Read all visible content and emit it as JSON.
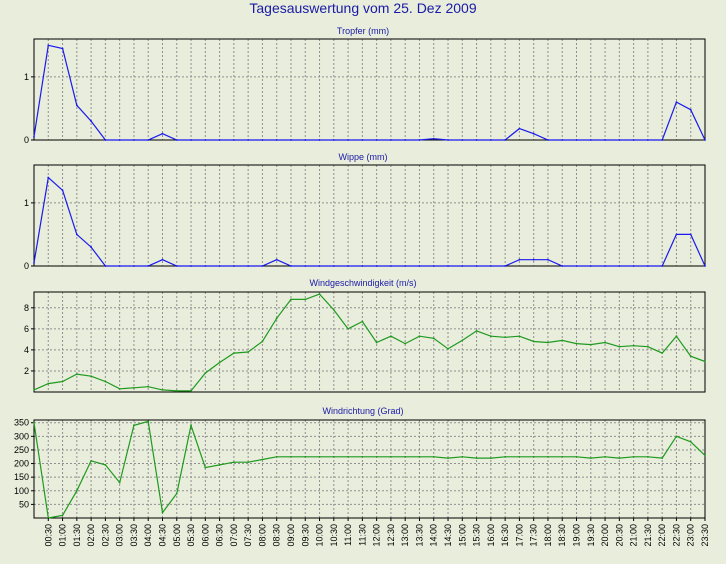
{
  "title": "Tagesauswertung vom 25. Dez 2009",
  "colors": {
    "background": "#e8eddc",
    "title": "#1a1aa6",
    "rain": "#1a1aee",
    "wind": "#1f9a1f",
    "grid": "#909090",
    "axis": "#000000"
  },
  "chart_data": [
    {
      "type": "line",
      "title": "Tropfer (mm)",
      "color": "#1a1aee",
      "ylim": [
        0,
        1.6
      ],
      "yticks": [
        0,
        1
      ],
      "grid": true,
      "x": [
        "00:00",
        "00:30",
        "01:00",
        "01:30",
        "02:00",
        "02:30",
        "03:00",
        "03:30",
        "04:00",
        "04:30",
        "05:00",
        "05:30",
        "06:00",
        "06:30",
        "07:00",
        "07:30",
        "08:00",
        "08:30",
        "09:00",
        "09:30",
        "10:00",
        "10:30",
        "11:00",
        "11:30",
        "12:00",
        "12:30",
        "13:00",
        "13:30",
        "14:00",
        "14:30",
        "15:00",
        "15:30",
        "16:00",
        "16:30",
        "17:00",
        "17:30",
        "18:00",
        "18:30",
        "19:00",
        "19:30",
        "20:00",
        "20:30",
        "21:00",
        "21:30",
        "22:00",
        "22:30",
        "23:00",
        "23:30"
      ],
      "values": [
        0.05,
        1.5,
        1.45,
        0.55,
        0.3,
        0,
        0,
        0,
        0,
        0.1,
        0,
        0,
        0,
        0,
        0,
        0,
        0,
        0,
        0,
        0,
        0,
        0,
        0,
        0,
        0,
        0,
        0,
        0,
        0.02,
        0,
        0,
        0,
        0,
        0,
        0.18,
        0.1,
        0,
        0,
        0,
        0,
        0,
        0,
        0,
        0,
        0,
        0.6,
        0.48,
        0
      ]
    },
    {
      "type": "line",
      "title": "Wippe (mm)",
      "color": "#1a1aee",
      "ylim": [
        0,
        1.6
      ],
      "yticks": [
        0,
        1
      ],
      "grid": true,
      "x": [
        "00:00",
        "00:30",
        "01:00",
        "01:30",
        "02:00",
        "02:30",
        "03:00",
        "03:30",
        "04:00",
        "04:30",
        "05:00",
        "05:30",
        "06:00",
        "06:30",
        "07:00",
        "07:30",
        "08:00",
        "08:30",
        "09:00",
        "09:30",
        "10:00",
        "10:30",
        "11:00",
        "11:30",
        "12:00",
        "12:30",
        "13:00",
        "13:30",
        "14:00",
        "14:30",
        "15:00",
        "15:30",
        "16:00",
        "16:30",
        "17:00",
        "17:30",
        "18:00",
        "18:30",
        "19:00",
        "19:30",
        "20:00",
        "20:30",
        "21:00",
        "21:30",
        "22:00",
        "22:30",
        "23:00",
        "23:30"
      ],
      "values": [
        0.05,
        1.4,
        1.2,
        0.5,
        0.3,
        0,
        0,
        0,
        0,
        0.1,
        0,
        0,
        0,
        0,
        0,
        0,
        0,
        0.1,
        0,
        0,
        0,
        0,
        0,
        0,
        0,
        0,
        0,
        0,
        0,
        0,
        0,
        0,
        0,
        0,
        0.1,
        0.1,
        0.1,
        0,
        0,
        0,
        0,
        0,
        0,
        0,
        0,
        0.5,
        0.5,
        0
      ]
    },
    {
      "type": "line",
      "title": "Windgeschwindigkeit (m/s)",
      "color": "#1f9a1f",
      "ylim": [
        0,
        9.5
      ],
      "yticks": [
        2,
        4,
        6,
        8
      ],
      "grid": true,
      "x": [
        "00:00",
        "00:30",
        "01:00",
        "01:30",
        "02:00",
        "02:30",
        "03:00",
        "03:30",
        "04:00",
        "04:30",
        "05:00",
        "05:30",
        "06:00",
        "06:30",
        "07:00",
        "07:30",
        "08:00",
        "08:30",
        "09:00",
        "09:30",
        "10:00",
        "10:30",
        "11:00",
        "11:30",
        "12:00",
        "12:30",
        "13:00",
        "13:30",
        "14:00",
        "14:30",
        "15:00",
        "15:30",
        "16:00",
        "16:30",
        "17:00",
        "17:30",
        "18:00",
        "18:30",
        "19:00",
        "19:30",
        "20:00",
        "20:30",
        "21:00",
        "21:30",
        "22:00",
        "22:30",
        "23:00",
        "23:30"
      ],
      "values": [
        0.2,
        0.8,
        1.0,
        1.7,
        1.5,
        1.0,
        0.3,
        0.4,
        0.5,
        0.2,
        0.1,
        0.1,
        1.8,
        2.8,
        3.7,
        3.8,
        4.8,
        7.0,
        8.8,
        8.8,
        9.3,
        7.8,
        6.0,
        6.7,
        4.7,
        5.3,
        4.6,
        5.3,
        5.1,
        4.1,
        4.9,
        5.8,
        5.3,
        5.2,
        5.3,
        4.8,
        4.7,
        4.9,
        4.6,
        4.5,
        4.7,
        4.3,
        4.4,
        4.3,
        3.7,
        5.3,
        3.4,
        2.9
      ]
    },
    {
      "type": "line",
      "title": "Windrichtung (Grad)",
      "color": "#1f9a1f",
      "ylim": [
        0,
        360
      ],
      "yticks": [
        50,
        100,
        150,
        200,
        250,
        300,
        350
      ],
      "grid": true,
      "x": [
        "00:00",
        "00:30",
        "01:00",
        "01:30",
        "02:00",
        "02:30",
        "03:00",
        "03:30",
        "04:00",
        "04:30",
        "05:00",
        "05:30",
        "06:00",
        "06:30",
        "07:00",
        "07:30",
        "08:00",
        "08:30",
        "09:00",
        "09:30",
        "10:00",
        "10:30",
        "11:00",
        "11:30",
        "12:00",
        "12:30",
        "13:00",
        "13:30",
        "14:00",
        "14:30",
        "15:00",
        "15:30",
        "16:00",
        "16:30",
        "17:00",
        "17:30",
        "18:00",
        "18:30",
        "19:00",
        "19:30",
        "20:00",
        "20:30",
        "21:00",
        "21:30",
        "22:00",
        "22:30",
        "23:00",
        "23:30"
      ],
      "values": [
        350,
        0,
        10,
        100,
        210,
        195,
        130,
        340,
        355,
        20,
        90,
        340,
        185,
        195,
        205,
        205,
        215,
        225,
        225,
        225,
        225,
        225,
        225,
        225,
        225,
        225,
        225,
        225,
        225,
        220,
        225,
        220,
        220,
        225,
        225,
        225,
        225,
        225,
        225,
        220,
        225,
        220,
        225,
        225,
        220,
        300,
        280,
        230
      ]
    }
  ],
  "x_tick_labels": [
    "00:30",
    "01:00",
    "01:30",
    "02:00",
    "02:30",
    "03:00",
    "03:30",
    "04:00",
    "04:30",
    "05:00",
    "05:30",
    "06:00",
    "06:30",
    "07:00",
    "07:30",
    "08:00",
    "08:30",
    "09:00",
    "09:30",
    "10:00",
    "10:30",
    "11:00",
    "11:30",
    "12:00",
    "12:30",
    "13:00",
    "13:30",
    "14:00",
    "14:30",
    "15:00",
    "15:30",
    "16:00",
    "16:30",
    "17:00",
    "17:30",
    "18:00",
    "18:30",
    "19:00",
    "19:30",
    "20:00",
    "20:30",
    "21:00",
    "21:30",
    "22:00",
    "22:30",
    "23:00",
    "23:30"
  ]
}
